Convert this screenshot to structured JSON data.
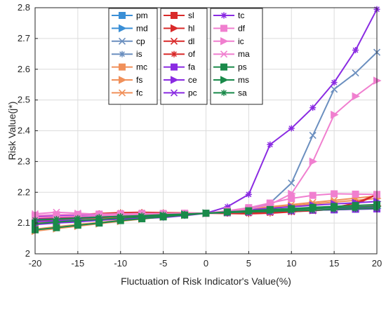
{
  "chart_data": {
    "type": "line",
    "title": "",
    "xlabel": "Fluctuation of Risk Indicator's Value(%)",
    "ylabel": "Risk Value(j*)",
    "xlim": [
      -20,
      20
    ],
    "ylim": [
      2.0,
      2.8
    ],
    "xticks": [
      -20,
      -15,
      -10,
      -5,
      0,
      5,
      10,
      15,
      20
    ],
    "xtick_labels": [
      "-20",
      "-15",
      "-10",
      "-5",
      "0",
      "5",
      "10",
      "15",
      "20"
    ],
    "yticks": [
      2.0,
      2.1,
      2.2,
      2.3,
      2.4,
      2.5,
      2.6,
      2.7,
      2.8
    ],
    "ytick_labels": [
      "2",
      "2.1",
      "2.2",
      "2.3",
      "2.4",
      "2.5",
      "2.6",
      "2.7",
      "2.8"
    ],
    "grid": true,
    "legend_position": "top-center",
    "x": [
      -20,
      -17.5,
      -15,
      -12.5,
      -10,
      -7.5,
      -5,
      -2.5,
      0,
      2.5,
      5,
      7.5,
      10,
      12.5,
      15,
      17.5,
      20
    ],
    "series": [
      {
        "name": "pm",
        "color": "#3a8fd6",
        "marker": "square",
        "values": [
          2.113,
          2.116,
          2.118,
          2.121,
          2.123,
          2.126,
          2.128,
          2.13,
          2.132,
          2.134,
          2.136,
          2.138,
          2.14,
          2.142,
          2.143,
          2.145,
          2.146
        ]
      },
      {
        "name": "md",
        "color": "#3a8fd6",
        "marker": "triangle-right",
        "values": [
          2.106,
          2.109,
          2.112,
          2.116,
          2.119,
          2.122,
          2.125,
          2.128,
          2.132,
          2.135,
          2.138,
          2.14,
          2.142,
          2.144,
          2.146,
          2.147,
          2.148
        ]
      },
      {
        "name": "cp",
        "color": "#6b8fbf",
        "marker": "x",
        "values": [
          2.118,
          2.12,
          2.121,
          2.123,
          2.125,
          2.127,
          2.128,
          2.13,
          2.132,
          2.134,
          2.145,
          2.165,
          2.23,
          2.385,
          2.535,
          2.588,
          2.655
        ]
      },
      {
        "name": "is",
        "color": "#6b8fbf",
        "marker": "asterisk",
        "values": [
          2.101,
          2.106,
          2.11,
          2.114,
          2.118,
          2.122,
          2.125,
          2.128,
          2.132,
          2.135,
          2.138,
          2.141,
          2.144,
          2.146,
          2.148,
          2.15,
          2.152
        ]
      },
      {
        "name": "mc",
        "color": "#f0905a",
        "marker": "square",
        "values": [
          2.1,
          2.105,
          2.109,
          2.113,
          2.117,
          2.121,
          2.125,
          2.128,
          2.132,
          2.136,
          2.14,
          2.143,
          2.147,
          2.15,
          2.153,
          2.156,
          2.159
        ]
      },
      {
        "name": "fs",
        "color": "#f0905a",
        "marker": "triangle-right",
        "values": [
          2.074,
          2.082,
          2.09,
          2.098,
          2.106,
          2.113,
          2.12,
          2.126,
          2.132,
          2.138,
          2.144,
          2.15,
          2.156,
          2.162,
          2.168,
          2.174,
          2.18
        ]
      },
      {
        "name": "fc",
        "color": "#f0905a",
        "marker": "x",
        "values": [
          2.08,
          2.088,
          2.095,
          2.102,
          2.109,
          2.115,
          2.121,
          2.127,
          2.132,
          2.139,
          2.146,
          2.153,
          2.16,
          2.167,
          2.174,
          2.181,
          2.188
        ]
      },
      {
        "name": "sl",
        "color": "#d92a2a",
        "marker": "square",
        "values": [
          2.116,
          2.118,
          2.12,
          2.122,
          2.124,
          2.126,
          2.128,
          2.13,
          2.132,
          2.134,
          2.136,
          2.138,
          2.14,
          2.142,
          2.144,
          2.146,
          2.148
        ]
      },
      {
        "name": "hl",
        "color": "#d92a2a",
        "marker": "triangle-right",
        "values": [
          2.109,
          2.112,
          2.115,
          2.118,
          2.121,
          2.124,
          2.127,
          2.13,
          2.132,
          2.135,
          2.138,
          2.141,
          2.144,
          2.147,
          2.15,
          2.153,
          2.156
        ]
      },
      {
        "name": "dl",
        "color": "#d92a2a",
        "marker": "x",
        "values": [
          2.12,
          2.122,
          2.124,
          2.126,
          2.128,
          2.129,
          2.13,
          2.131,
          2.132,
          2.133,
          2.134,
          2.135,
          2.137,
          2.14,
          2.145,
          2.16,
          2.193
        ]
      },
      {
        "name": "of",
        "color": "#d92a2a",
        "marker": "asterisk",
        "values": [
          2.12,
          2.124,
          2.128,
          2.131,
          2.134,
          2.135,
          2.134,
          2.133,
          2.132,
          2.131,
          2.13,
          2.132,
          2.136,
          2.142,
          2.15,
          2.165,
          2.193
        ]
      },
      {
        "name": "fa",
        "color": "#8a2be2",
        "marker": "square",
        "values": [
          2.112,
          2.114,
          2.117,
          2.12,
          2.122,
          2.125,
          2.127,
          2.13,
          2.132,
          2.134,
          2.136,
          2.138,
          2.14,
          2.142,
          2.143,
          2.145,
          2.146
        ]
      },
      {
        "name": "ce",
        "color": "#8a2be2",
        "marker": "triangle-right",
        "values": [
          2.095,
          2.1,
          2.104,
          2.109,
          2.113,
          2.118,
          2.122,
          2.127,
          2.132,
          2.137,
          2.143,
          2.148,
          2.153,
          2.158,
          2.162,
          2.166,
          2.17
        ]
      },
      {
        "name": "pc",
        "color": "#8a2be2",
        "marker": "x",
        "values": [
          2.123,
          2.124,
          2.125,
          2.126,
          2.127,
          2.128,
          2.129,
          2.131,
          2.132,
          2.134,
          2.136,
          2.138,
          2.141,
          2.144,
          2.147,
          2.15,
          2.153
        ]
      },
      {
        "name": "tc",
        "color": "#8a2be2",
        "marker": "asterisk",
        "values": [
          2.105,
          2.107,
          2.109,
          2.111,
          2.113,
          2.115,
          2.118,
          2.124,
          2.132,
          2.153,
          2.193,
          2.355,
          2.408,
          2.475,
          2.557,
          2.662,
          2.795
        ]
      },
      {
        "name": "df",
        "color": "#f07fcf",
        "marker": "square",
        "values": [
          2.125,
          2.127,
          2.128,
          2.129,
          2.13,
          2.131,
          2.131,
          2.132,
          2.132,
          2.14,
          2.15,
          2.165,
          2.18,
          2.19,
          2.195,
          2.194,
          2.193
        ]
      },
      {
        "name": "ic",
        "color": "#f07fcf",
        "marker": "triangle-right",
        "values": [
          2.118,
          2.12,
          2.122,
          2.124,
          2.126,
          2.128,
          2.129,
          2.131,
          2.132,
          2.135,
          2.145,
          2.16,
          2.195,
          2.3,
          2.452,
          2.512,
          2.563
        ]
      },
      {
        "name": "ma",
        "color": "#f07fcf",
        "marker": "x",
        "values": [
          2.13,
          2.135,
          2.132,
          2.128,
          2.125,
          2.126,
          2.128,
          2.13,
          2.132,
          2.134,
          2.136,
          2.139,
          2.142,
          2.146,
          2.15,
          2.155,
          2.16
        ]
      },
      {
        "name": "ps",
        "color": "#1a8a4a",
        "marker": "square",
        "values": [
          2.078,
          2.085,
          2.093,
          2.1,
          2.108,
          2.114,
          2.12,
          2.126,
          2.132,
          2.136,
          2.14,
          2.144,
          2.147,
          2.151,
          2.154,
          2.157,
          2.16
        ]
      },
      {
        "name": "ms",
        "color": "#1a8a4a",
        "marker": "triangle-right",
        "values": [
          2.098,
          2.103,
          2.108,
          2.112,
          2.116,
          2.12,
          2.124,
          2.128,
          2.132,
          2.135,
          2.138,
          2.141,
          2.144,
          2.147,
          2.15,
          2.152,
          2.154
        ]
      },
      {
        "name": "sa",
        "color": "#1a8a4a",
        "marker": "asterisk",
        "values": [
          2.11,
          2.113,
          2.116,
          2.119,
          2.122,
          2.124,
          2.127,
          2.129,
          2.132,
          2.134,
          2.136,
          2.138,
          2.14,
          2.142,
          2.144,
          2.146,
          2.148
        ]
      }
    ]
  }
}
